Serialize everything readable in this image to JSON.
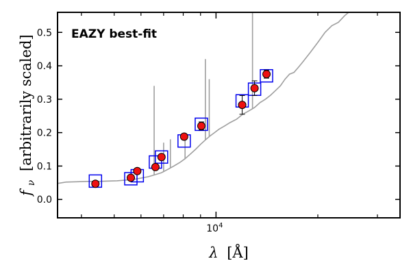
{
  "chart_data": {
    "type": "scatter",
    "title": "",
    "annotation": "EAZY best-fit",
    "annotation_color": "#ff0000",
    "xlabel_symbol": "λ",
    "xlabel_unit": "[Å]",
    "ylabel_symbol": "f",
    "ylabel_subscript": "ν",
    "ylabel_text": "[arbitrarily scaled]",
    "x_scale": "log",
    "xlim": [
      3400,
      35000
    ],
    "ylim": [
      -0.055,
      0.56
    ],
    "x_ticks": [
      {
        "value": 10000,
        "base": "10",
        "exp": "4"
      }
    ],
    "y_ticks": [
      {
        "value": 0.0,
        "label": "0.0"
      },
      {
        "value": 0.1,
        "label": "0.1"
      },
      {
        "value": 0.2,
        "label": "0.2"
      },
      {
        "value": 0.3,
        "label": "0.3"
      },
      {
        "value": 0.4,
        "label": "0.4"
      },
      {
        "value": 0.5,
        "label": "0.5"
      }
    ],
    "grid": false,
    "colors": {
      "sed": "#9e9e9e",
      "model_box": "#0000ee",
      "obs_fill": "#ee1111",
      "obs_edge": "#000000"
    },
    "sed_spectrum": {
      "name": "EAZY best-fit",
      "x": [
        3400,
        3600,
        3900,
        4200,
        4500,
        4800,
        5100,
        5400,
        5700,
        6000,
        6300,
        6600,
        6900,
        7200,
        7500,
        7800,
        8100,
        8400,
        8700,
        9000,
        9300,
        9600,
        9900,
        10200,
        10600,
        11000,
        11500,
        12000,
        12500,
        13000,
        13500,
        14000,
        14500,
        15000,
        15500,
        16000,
        16500,
        17000,
        17500,
        18000,
        19000,
        20000,
        21000,
        22000,
        23000,
        24000,
        25000,
        26000
      ],
      "y": [
        0.048,
        0.052,
        0.053,
        0.054,
        0.054,
        0.055,
        0.056,
        0.058,
        0.06,
        0.064,
        0.068,
        0.074,
        0.08,
        0.09,
        0.1,
        0.11,
        0.122,
        0.136,
        0.15,
        0.165,
        0.178,
        0.19,
        0.2,
        0.21,
        0.22,
        0.23,
        0.24,
        0.255,
        0.265,
        0.275,
        0.29,
        0.3,
        0.312,
        0.326,
        0.34,
        0.36,
        0.375,
        0.38,
        0.395,
        0.41,
        0.44,
        0.47,
        0.5,
        0.52,
        0.53,
        0.55,
        0.565,
        0.58
      ],
      "emission_lines": [
        {
          "x": 6563,
          "peak": 0.34
        },
        {
          "x": 7000,
          "peak": 0.17
        },
        {
          "x": 7330,
          "peak": 0.18
        },
        {
          "x": 8100,
          "peak": 0.2
        },
        {
          "x": 9300,
          "peak": 0.42
        },
        {
          "x": 9550,
          "peak": 0.36
        },
        {
          "x": 12820,
          "peak": 0.6
        }
      ]
    },
    "model_photometry": [
      {
        "x": 4400,
        "y": 0.055
      },
      {
        "x": 5600,
        "y": 0.062
      },
      {
        "x": 5850,
        "y": 0.071
      },
      {
        "x": 6620,
        "y": 0.112
      },
      {
        "x": 6900,
        "y": 0.127
      },
      {
        "x": 8050,
        "y": 0.175
      },
      {
        "x": 9050,
        "y": 0.225
      },
      {
        "x": 11950,
        "y": 0.295
      },
      {
        "x": 13000,
        "y": 0.33
      },
      {
        "x": 14100,
        "y": 0.37
      }
    ],
    "observed_photometry": [
      {
        "x": 4400,
        "y": 0.047,
        "err": 0.005
      },
      {
        "x": 5600,
        "y": 0.065,
        "err": 0.006
      },
      {
        "x": 5850,
        "y": 0.085,
        "err": 0.006
      },
      {
        "x": 6620,
        "y": 0.097,
        "err": 0.007
      },
      {
        "x": 6900,
        "y": 0.127,
        "err": 0.007
      },
      {
        "x": 8050,
        "y": 0.188,
        "err": 0.009
      },
      {
        "x": 9050,
        "y": 0.22,
        "err": 0.012
      },
      {
        "x": 11950,
        "y": 0.283,
        "err": 0.028
      },
      {
        "x": 13000,
        "y": 0.333,
        "err": 0.022
      },
      {
        "x": 14100,
        "y": 0.375,
        "err": 0.012
      }
    ]
  }
}
